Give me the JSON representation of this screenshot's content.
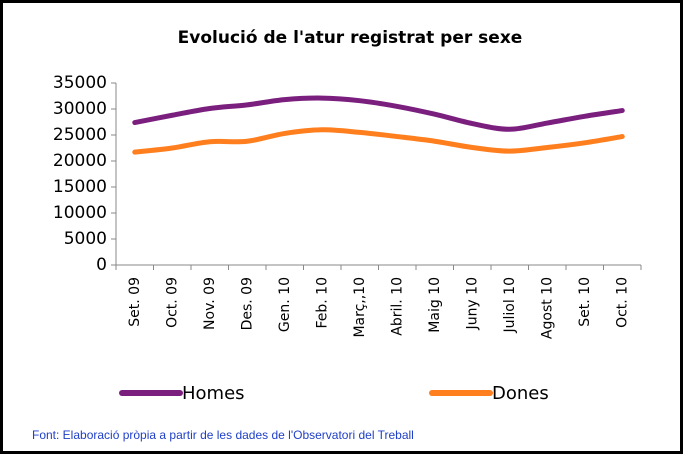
{
  "chart_data": {
    "type": "line",
    "title": "Evolució de l'atur registrat per sexe",
    "categories": [
      "Set. 09",
      "Oct. 09",
      "Nov. 09",
      "Des. 09",
      "Gen. 10",
      "Feb. 10",
      "Març,,10",
      "Abril. 10",
      "Maig 10",
      "Juny 10",
      "Juliol 10",
      "Agost 10",
      "Set. 10",
      "Oct. 10"
    ],
    "series": [
      {
        "name": "Homes",
        "color": "#7b1f7f",
        "values": [
          27400,
          28800,
          30100,
          30800,
          31800,
          32100,
          31600,
          30500,
          29000,
          27200,
          26100,
          27300,
          28600,
          29700
        ]
      },
      {
        "name": "Dones",
        "color": "#ff7f1f",
        "values": [
          21700,
          22500,
          23700,
          23800,
          25300,
          26000,
          25500,
          24700,
          23800,
          22600,
          21900,
          22600,
          23500,
          24700
        ]
      }
    ],
    "ylim": [
      0,
      35000
    ],
    "yticks": [
      0,
      5000,
      10000,
      15000,
      20000,
      25000,
      30000,
      35000
    ],
    "grid": false,
    "legend": "bottom",
    "source": "Font: Elaboració pròpia a partir de les dades de l'Observatori del Treball"
  }
}
